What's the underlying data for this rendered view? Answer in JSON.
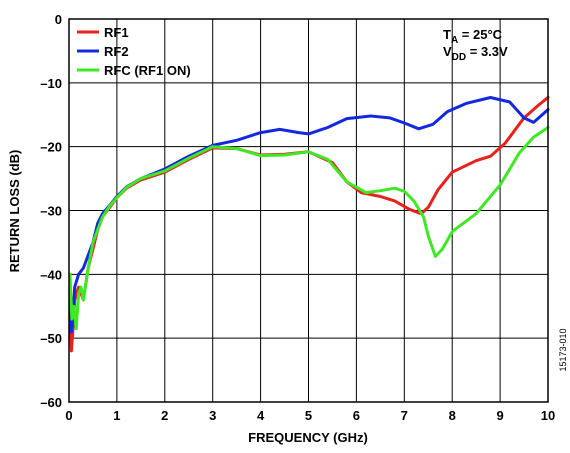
{
  "chart_data": {
    "type": "line",
    "xlabel": "FREQUENCY (GHz)",
    "ylabel": "RETURN LOSS (dB)",
    "xlim": [
      0,
      10
    ],
    "ylim": [
      -60,
      0
    ],
    "x_ticks": [
      "0",
      "1",
      "2",
      "3",
      "4",
      "5",
      "6",
      "7",
      "8",
      "9",
      "10"
    ],
    "y_ticks": [
      "0",
      "–10",
      "–20",
      "–30",
      "–40",
      "–50",
      "–60"
    ],
    "grid": true,
    "legend_position": "top-left",
    "annotation": {
      "line1_main": "T",
      "line1_sub": "A",
      "line1_rest": " = 25°C",
      "line2_main": "V",
      "line2_sub": "DD",
      "line2_rest": " = 3.3V"
    },
    "figure_id": "15173-010",
    "series": [
      {
        "name": "RF1",
        "color": "#e8211c",
        "points": [
          [
            0.02,
            -44
          ],
          [
            0.05,
            -52
          ],
          [
            0.08,
            -49
          ],
          [
            0.12,
            -44
          ],
          [
            0.2,
            -42
          ],
          [
            0.3,
            -44
          ],
          [
            0.4,
            -39
          ],
          [
            0.5,
            -36
          ],
          [
            0.6,
            -33
          ],
          [
            0.7,
            -31
          ],
          [
            0.85,
            -29.5
          ],
          [
            1,
            -28
          ],
          [
            1.2,
            -26.5
          ],
          [
            1.5,
            -25.2
          ],
          [
            2,
            -24
          ],
          [
            2.5,
            -22
          ],
          [
            3,
            -20.2
          ],
          [
            3.5,
            -20.3
          ],
          [
            4,
            -21.3
          ],
          [
            4.5,
            -21.2
          ],
          [
            5,
            -20.8
          ],
          [
            5.5,
            -22.5
          ],
          [
            5.8,
            -25.5
          ],
          [
            6.1,
            -27.2
          ],
          [
            6.5,
            -27.8
          ],
          [
            6.8,
            -28.5
          ],
          [
            7.1,
            -29.8
          ],
          [
            7.35,
            -30.5
          ],
          [
            7.5,
            -29.5
          ],
          [
            7.7,
            -26.8
          ],
          [
            8,
            -24
          ],
          [
            8.5,
            -22.2
          ],
          [
            8.8,
            -21.5
          ],
          [
            9.1,
            -19.5
          ],
          [
            9.5,
            -15.5
          ],
          [
            9.8,
            -13.5
          ],
          [
            10,
            -12.3
          ]
        ]
      },
      {
        "name": "RF2",
        "color": "#1428e0",
        "points": [
          [
            0.02,
            -41
          ],
          [
            0.05,
            -49
          ],
          [
            0.08,
            -47
          ],
          [
            0.12,
            -42
          ],
          [
            0.2,
            -40
          ],
          [
            0.3,
            -39
          ],
          [
            0.4,
            -37
          ],
          [
            0.5,
            -35
          ],
          [
            0.6,
            -32
          ],
          [
            0.7,
            -30.5
          ],
          [
            0.85,
            -29.2
          ],
          [
            1,
            -27.8
          ],
          [
            1.2,
            -26.3
          ],
          [
            1.5,
            -25
          ],
          [
            2,
            -23.5
          ],
          [
            2.5,
            -21.5
          ],
          [
            3,
            -19.8
          ],
          [
            3.5,
            -19
          ],
          [
            4,
            -17.8
          ],
          [
            4.4,
            -17.3
          ],
          [
            4.8,
            -17.8
          ],
          [
            5,
            -18
          ],
          [
            5.4,
            -17
          ],
          [
            5.8,
            -15.6
          ],
          [
            6.3,
            -15.2
          ],
          [
            6.7,
            -15.5
          ],
          [
            7,
            -16.3
          ],
          [
            7.3,
            -17.2
          ],
          [
            7.6,
            -16.5
          ],
          [
            7.9,
            -14.5
          ],
          [
            8.3,
            -13.2
          ],
          [
            8.8,
            -12.3
          ],
          [
            9.2,
            -13
          ],
          [
            9.5,
            -15.5
          ],
          [
            9.7,
            -16.2
          ],
          [
            10,
            -14.2
          ]
        ]
      },
      {
        "name": "RFC (RF1 ON)",
        "color": "#3fe824",
        "points": [
          [
            0.02,
            -40
          ],
          [
            0.06,
            -47
          ],
          [
            0.1,
            -45
          ],
          [
            0.15,
            -48.5
          ],
          [
            0.2,
            -43
          ],
          [
            0.25,
            -42
          ],
          [
            0.3,
            -44
          ],
          [
            0.4,
            -39
          ],
          [
            0.5,
            -35
          ],
          [
            0.6,
            -33
          ],
          [
            0.7,
            -31
          ],
          [
            0.85,
            -29.3
          ],
          [
            1,
            -28
          ],
          [
            1.2,
            -26.4
          ],
          [
            1.5,
            -25
          ],
          [
            2,
            -23.8
          ],
          [
            2.5,
            -21.8
          ],
          [
            3,
            -20
          ],
          [
            3.5,
            -20.3
          ],
          [
            4,
            -21.4
          ],
          [
            4.5,
            -21.3
          ],
          [
            5,
            -20.8
          ],
          [
            5.4,
            -22
          ],
          [
            5.8,
            -25.5
          ],
          [
            6.2,
            -27.2
          ],
          [
            6.5,
            -26.9
          ],
          [
            6.8,
            -26.5
          ],
          [
            7,
            -27
          ],
          [
            7.2,
            -28.5
          ],
          [
            7.4,
            -31
          ],
          [
            7.5,
            -34
          ],
          [
            7.65,
            -37.2
          ],
          [
            7.8,
            -36
          ],
          [
            8,
            -33.3
          ],
          [
            8.5,
            -30.5
          ],
          [
            9,
            -26
          ],
          [
            9.4,
            -21
          ],
          [
            9.7,
            -18.5
          ],
          [
            10,
            -17
          ]
        ]
      }
    ]
  }
}
